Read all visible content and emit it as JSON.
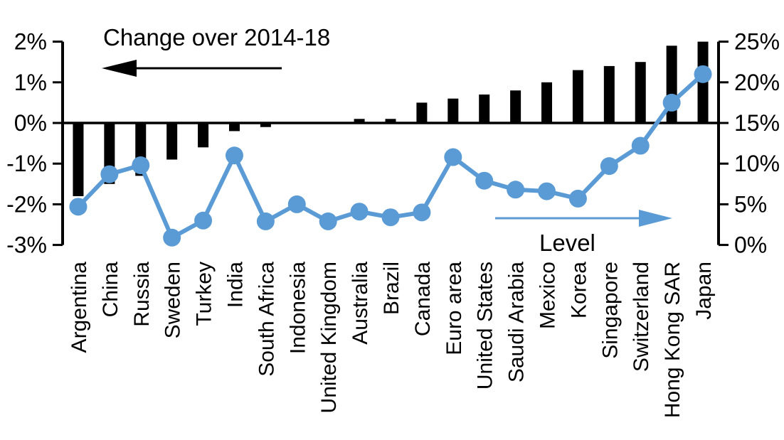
{
  "chart_data": {
    "type": "bar",
    "subtype": "dual-axis bar and line combo",
    "title": "",
    "categories": [
      "Argentina",
      "China",
      "Russia",
      "Sweden",
      "Turkey",
      "India",
      "South Africa",
      "Indonesia",
      "United Kingdom",
      "Australia",
      "Brazil",
      "Canada",
      "Euro area",
      "United States",
      "Saudi Arabia",
      "Mexico",
      "Korea",
      "Singapore",
      "Switzerland",
      "Hong Kong SAR",
      "Japan"
    ],
    "series": [
      {
        "name": "Change over 2014-18",
        "type": "bar",
        "axis": "left",
        "color": "#000000",
        "values": [
          -1.8,
          -1.5,
          -1.3,
          -0.9,
          -0.6,
          -0.2,
          -0.1,
          0,
          0,
          0.1,
          0.1,
          0.5,
          0.6,
          0.7,
          0.8,
          1.0,
          1.3,
          1.4,
          1.5,
          1.9,
          2.0
        ]
      },
      {
        "name": "Level",
        "type": "line",
        "axis": "right",
        "color": "#5B9BD5",
        "values": [
          4.7,
          8.7,
          9.8,
          0.9,
          3.0,
          11.0,
          2.9,
          5.0,
          2.9,
          4.1,
          3.4,
          4.0,
          10.8,
          7.9,
          6.8,
          6.6,
          5.7,
          9.7,
          12.2,
          17.5,
          21.0
        ]
      }
    ],
    "left_axis": {
      "min": -3,
      "max": 2,
      "tick_values": [
        2,
        1,
        0,
        -1,
        -2,
        -3
      ],
      "tick_labels": [
        "2%",
        "1%",
        "0%",
        "-1%",
        "-2%",
        "-3%"
      ]
    },
    "right_axis": {
      "min": 0,
      "max": 25,
      "tick_values": [
        25,
        20,
        15,
        10,
        5,
        0
      ],
      "tick_labels": [
        "25%",
        "20%",
        "15%",
        "10%",
        "5%",
        "0%"
      ]
    },
    "annotations": {
      "bar_series_label": {
        "text": "Change over 2014-18",
        "arrow_direction": "left",
        "arrow_color": "#000000"
      },
      "line_series_label": {
        "text": "Level",
        "arrow_direction": "right",
        "arrow_color": "#5B9BD5"
      }
    },
    "grid": "off",
    "legend_position": "in-plot arrow annotations",
    "background": "#FFFFFF"
  }
}
